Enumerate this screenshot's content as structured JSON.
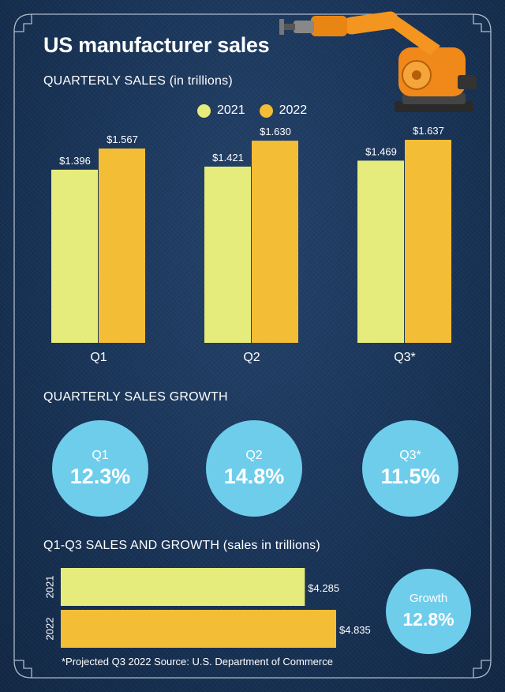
{
  "header": {
    "title": "US manufacturer sales"
  },
  "sections": {
    "quarterly_sales": "QUARTERLY SALES (in trillions)",
    "quarterly_growth": "QUARTERLY SALES GROWTH",
    "ytd": "Q1-Q3 SALES AND GROWTH (sales in trillions)"
  },
  "legend": [
    {
      "label": "2021",
      "color": "#e6ec7c"
    },
    {
      "label": "2022",
      "color": "#f3bd36"
    }
  ],
  "growth_bubbles": [
    {
      "label": "Q1",
      "value": "12.3%"
    },
    {
      "label": "Q2",
      "value": "14.8%"
    },
    {
      "label": "Q3*",
      "value": "11.5%"
    }
  ],
  "ytd_growth": {
    "label": "Growth",
    "value": "12.8%"
  },
  "footnote": "*Projected Q3 2022   Source: U.S. Department of Commerce",
  "chart_data": [
    {
      "type": "bar",
      "title": "QUARTERLY SALES (in trillions)",
      "categories": [
        "Q1",
        "Q2",
        "Q3*"
      ],
      "series": [
        {
          "name": "2021",
          "values": [
            1.396,
            1.421,
            1.469
          ],
          "labels": [
            "$1.396",
            "$1.421",
            "$1.469"
          ],
          "color": "#e6ec7c"
        },
        {
          "name": "2022",
          "values": [
            1.567,
            1.63,
            1.637
          ],
          "labels": [
            "$1.567",
            "$1.630",
            "$1.637"
          ],
          "color": "#f3bd36"
        }
      ],
      "ylim": [
        0,
        1.637
      ]
    },
    {
      "type": "bar",
      "orientation": "horizontal",
      "title": "Q1-Q3 SALES AND GROWTH (sales in trillions)",
      "categories": [
        "2021",
        "2022"
      ],
      "values": [
        4.285,
        4.835
      ],
      "labels": [
        "$4.285",
        "$4.835"
      ],
      "colors": [
        "#e6ec7c",
        "#f3bd36"
      ],
      "xlim": [
        0,
        4.835
      ]
    }
  ]
}
